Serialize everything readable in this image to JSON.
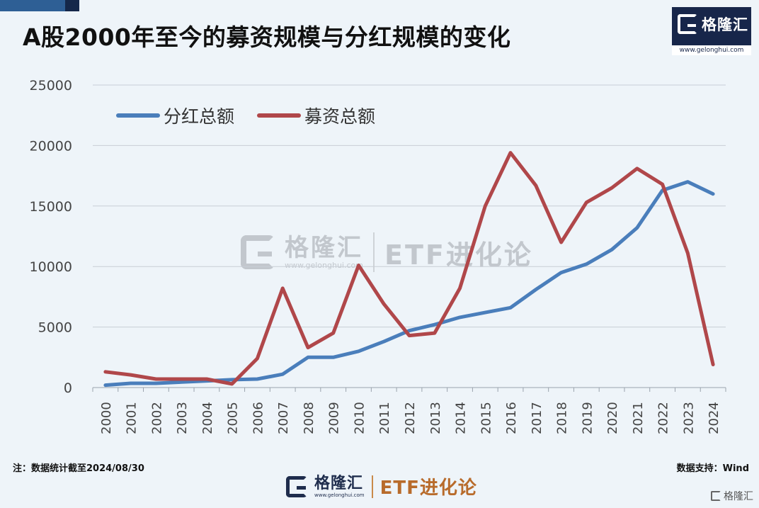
{
  "title": "A股2000年至今的募资规模与分红规模的变化",
  "brand": {
    "name": "格隆汇",
    "url": "www.gelonghui.com",
    "column": "ETF进化论"
  },
  "note": "注：数据统计截至2024/08/30",
  "source": "数据支持：Wind",
  "colors": {
    "dividend": "#4a7ebb",
    "financing": "#b0474a",
    "grid": "#c8ced6",
    "axis_text": "#444444"
  },
  "chart_data": {
    "type": "line",
    "title": "A股2000年至今的募资规模与分红规模的变化",
    "xlabel": "",
    "ylabel": "",
    "ylim": [
      0,
      25000
    ],
    "yticks": [
      0,
      5000,
      10000,
      15000,
      20000,
      25000
    ],
    "grid": true,
    "legend": "top-left",
    "x": [
      "2000",
      "2001",
      "2002",
      "2003",
      "2004",
      "2005",
      "2006",
      "2007",
      "2008",
      "2009",
      "2010",
      "2011",
      "2012",
      "2013",
      "2014",
      "2015",
      "2016",
      "2017",
      "2018",
      "2019",
      "2020",
      "2021",
      "2022",
      "2023",
      "2024"
    ],
    "series": [
      {
        "name": "分红总额",
        "color": "#4a7ebb",
        "values": [
          200,
          350,
          350,
          450,
          550,
          650,
          700,
          1100,
          2500,
          2500,
          3000,
          3800,
          4700,
          5200,
          5800,
          6200,
          6600,
          8100,
          9500,
          10200,
          11400,
          13200,
          16300,
          17000,
          16000
        ]
      },
      {
        "name": "募资总额",
        "color": "#b0474a",
        "values": [
          1300,
          1050,
          700,
          700,
          700,
          300,
          2400,
          8200,
          3300,
          4500,
          10100,
          6900,
          4300,
          4500,
          8200,
          15000,
          19400,
          16700,
          12000,
          15300,
          16500,
          18100,
          16800,
          11100,
          1900
        ]
      }
    ]
  }
}
